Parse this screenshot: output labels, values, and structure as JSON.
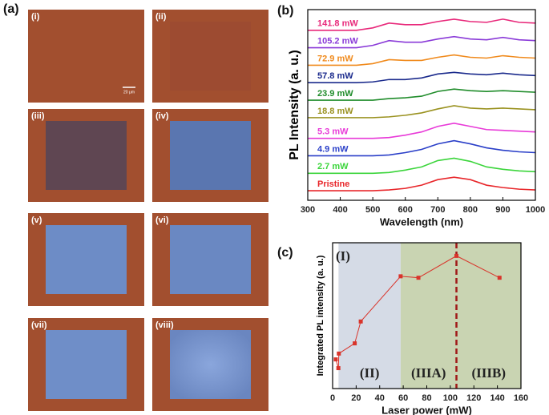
{
  "panel_a": {
    "label": "(a)",
    "images": [
      {
        "label": "(i)"
      },
      {
        "label": "(ii)"
      },
      {
        "label": "(iii)"
      },
      {
        "label": "(iv)"
      },
      {
        "label": "(v)"
      },
      {
        "label": "(vi)"
      },
      {
        "label": "(vii)"
      },
      {
        "label": "(viii)"
      }
    ],
    "scale_bar": "20 μm"
  },
  "chart_data": [
    {
      "type": "line",
      "panel_label": "(b)",
      "xlabel": "Wavelength (nm)",
      "ylabel": "PL Intensity (a. u.)",
      "xlim": [
        300,
        1000
      ],
      "xticks": [
        300,
        400,
        500,
        600,
        700,
        800,
        900,
        1000
      ],
      "ylim": [
        0,
        12
      ],
      "x": [
        300,
        350,
        400,
        450,
        500,
        550,
        600,
        650,
        700,
        750,
        800,
        850,
        900,
        950,
        1000
      ],
      "series": [
        {
          "name": "Pristine",
          "color": "#e8262a",
          "values": [
            0.6,
            0.6,
            0.6,
            0.6,
            0.6,
            0.65,
            0.75,
            0.95,
            1.3,
            1.45,
            1.3,
            0.95,
            0.8,
            0.7,
            0.65
          ]
        },
        {
          "name": "2.7 mW",
          "color": "#3bd53b",
          "values": [
            1.7,
            1.7,
            1.7,
            1.7,
            1.7,
            1.75,
            1.9,
            2.1,
            2.5,
            2.65,
            2.45,
            2.1,
            1.95,
            1.85,
            1.8
          ]
        },
        {
          "name": "4.9 mW",
          "color": "#2a3fc8",
          "values": [
            2.8,
            2.8,
            2.8,
            2.8,
            2.8,
            2.85,
            3.0,
            3.2,
            3.55,
            3.75,
            3.55,
            3.3,
            3.15,
            3.05,
            3.0
          ]
        },
        {
          "name": "5.3 mW",
          "color": "#e83ad8",
          "values": [
            3.9,
            3.9,
            3.9,
            3.9,
            3.9,
            3.95,
            4.1,
            4.3,
            4.65,
            4.85,
            4.65,
            4.45,
            4.4,
            4.35,
            4.3
          ]
        },
        {
          "name": "18.8 mW",
          "color": "#9a9220",
          "values": [
            5.2,
            5.2,
            5.2,
            5.2,
            5.2,
            5.25,
            5.35,
            5.5,
            5.75,
            5.95,
            5.8,
            5.75,
            5.8,
            5.75,
            5.7
          ]
        },
        {
          "name": "23.9 mW",
          "color": "#1f8c2a",
          "values": [
            6.3,
            6.3,
            6.3,
            6.3,
            6.3,
            6.4,
            6.45,
            6.55,
            6.85,
            7.0,
            6.9,
            6.85,
            6.9,
            6.85,
            6.8
          ]
        },
        {
          "name": "57.8 mW",
          "color": "#1a2a8c",
          "values": [
            7.4,
            7.4,
            7.4,
            7.4,
            7.45,
            7.6,
            7.6,
            7.7,
            7.95,
            8.05,
            7.95,
            7.9,
            8.0,
            7.9,
            7.85
          ]
        },
        {
          "name": "72.9 mW",
          "color": "#f08a1c",
          "values": [
            8.5,
            8.5,
            8.5,
            8.5,
            8.6,
            8.85,
            8.8,
            8.8,
            9.0,
            9.15,
            9.0,
            8.95,
            9.1,
            9.0,
            8.95
          ]
        },
        {
          "name": "105.2 mW",
          "color": "#8a3ad8",
          "values": [
            9.6,
            9.6,
            9.6,
            9.6,
            9.75,
            10.05,
            9.95,
            9.95,
            10.15,
            10.3,
            10.15,
            10.1,
            10.25,
            10.1,
            10.05
          ]
        },
        {
          "name": "141.8 mW",
          "color": "#e8287a",
          "values": [
            10.7,
            10.7,
            10.7,
            10.7,
            10.85,
            11.15,
            11.05,
            11.05,
            11.25,
            11.4,
            11.25,
            11.2,
            11.4,
            11.2,
            11.15
          ]
        }
      ]
    },
    {
      "type": "line",
      "panel_label": "(c)",
      "xlabel": "Laser power (mW)",
      "ylabel": "Integrated PL intensity (a. u.)",
      "xlim": [
        0,
        160
      ],
      "xticks": [
        0,
        20,
        40,
        60,
        80,
        100,
        120,
        140,
        160
      ],
      "ylim": [
        0,
        1
      ],
      "x": [
        2.7,
        4.9,
        5.3,
        18.8,
        23.9,
        57.8,
        72.9,
        105.2,
        141.8
      ],
      "color": "#d9342b",
      "values": [
        0.2,
        0.14,
        0.24,
        0.31,
        0.46,
        0.77,
        0.76,
        0.91,
        0.76
      ],
      "regions": [
        {
          "label": "(I)",
          "x": [
            0,
            5
          ],
          "color": "#ffffff"
        },
        {
          "label": "(II)",
          "x": [
            5,
            57.8
          ],
          "color": "#d5dbe6"
        },
        {
          "label": "(IIIA)",
          "x": [
            57.8,
            105.2
          ],
          "color": "#c9d4b2"
        },
        {
          "label": "(IIIB)",
          "x": [
            105.2,
            160
          ],
          "color": "#c9d4b2"
        }
      ],
      "vline": {
        "x": 105.2,
        "color": "#a01818"
      }
    }
  ]
}
